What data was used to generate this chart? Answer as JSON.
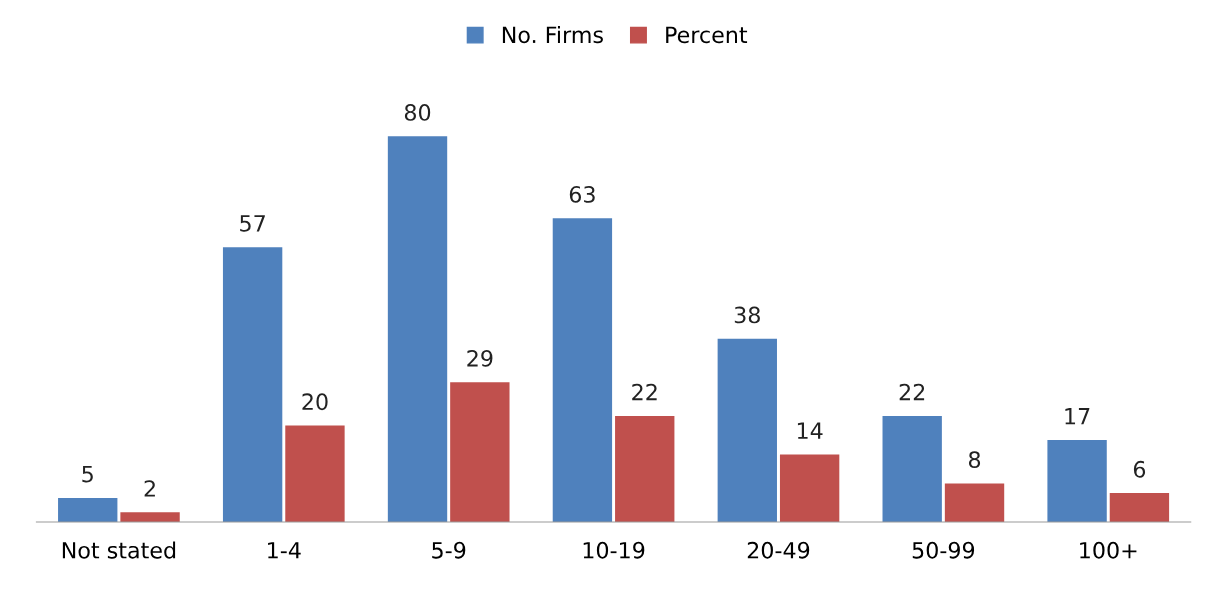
{
  "chart_data": {
    "type": "bar",
    "categories": [
      "Not stated",
      "1-4",
      "5-9",
      "10-19",
      "20-49",
      "50-99",
      "100+"
    ],
    "series": [
      {
        "name": "No. Firms",
        "color": "#4f81bd",
        "values": [
          5,
          57,
          80,
          63,
          38,
          22,
          17
        ]
      },
      {
        "name": "Percent",
        "color": "#c0504d",
        "values": [
          2,
          20,
          29,
          22,
          14,
          8,
          6
        ]
      }
    ],
    "data_labels": true,
    "legend": "top",
    "grid": false
  }
}
